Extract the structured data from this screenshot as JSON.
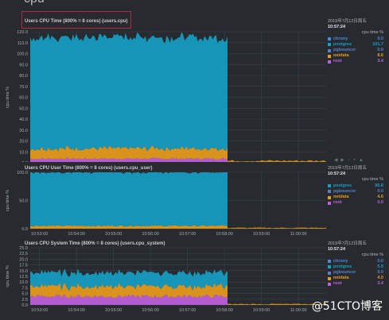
{
  "section_title": "cpu",
  "watermark": "@51CTO博客",
  "controls": "◀ ▶ − + ▲",
  "colors": {
    "chrony": "#4a89dc",
    "postgres": "#169ec4",
    "pgbouncer": "#5b7fc7",
    "netdata": "#e89b1a",
    "root": "#c15fe0",
    "bg": "#272b30",
    "grid": "#3c4148",
    "axis": "#a9adb3"
  },
  "chart_data": [
    {
      "type": "area",
      "title": "Users CPU Time (800% = 8 cores) (users.cpu)",
      "ylabel": "cpu time %",
      "ylim": [
        0,
        120
      ],
      "yticks": [
        "0.0",
        "10.0",
        "20.0",
        "30.0",
        "40.0",
        "50.0",
        "60.0",
        "70.0",
        "80.0",
        "90.0",
        "100.0",
        "110.0",
        "120.0"
      ],
      "xticks": [
        "10:53:00",
        "10:54:00",
        "10:55:00",
        "10:56:00",
        "10:57:00",
        "10:58:00",
        "10:59:00",
        "11:00:00"
      ],
      "x_start": "10:52:45",
      "x_end": "11:00:45",
      "active_until": "10:58:05",
      "series": [
        {
          "name": "chrony",
          "value": "0.0",
          "level": 0
        },
        {
          "name": "postgres",
          "value": "101.7",
          "level": 101.7
        },
        {
          "name": "pgbouncer",
          "value": "0.0",
          "level": 0
        },
        {
          "name": "netdata",
          "value": "8.6",
          "level": 8.6
        },
        {
          "name": "root",
          "value": "3.4",
          "level": 3.4
        }
      ],
      "legend": {
        "date": "2019年7月12日周五",
        "time": "10:57:24",
        "unit": "cpu time %"
      }
    },
    {
      "type": "area",
      "title": "Users CPU User Time (800% = 8 cores) (users.cpu_user)",
      "ylabel": "cpu time %",
      "ylim": [
        0,
        100
      ],
      "yticks": [
        "0.0",
        "50.0",
        "100.0"
      ],
      "xticks": [
        "10:53:00",
        "10:54:00",
        "10:55:00",
        "10:56:00",
        "10:57:00",
        "10:58:00",
        "10:59:00",
        "11:00:00"
      ],
      "x_start": "10:52:45",
      "x_end": "11:00:45",
      "active_until": "10:58:05",
      "series": [
        {
          "name": "postgres",
          "value": "95.8",
          "level": 95.8
        },
        {
          "name": "pgbouncer",
          "value": "0.0",
          "level": 0
        },
        {
          "name": "netdata",
          "value": "4.6",
          "level": 4.6
        },
        {
          "name": "root",
          "value": "0.0",
          "level": 0
        }
      ],
      "legend": {
        "date": "2019年7月12日周五",
        "time": "10:57:24",
        "unit": "cpu time %"
      }
    },
    {
      "type": "area",
      "title": "Users CPU System Time (800% = 8 cores) (users.cpu_system)",
      "ylabel": "cpu time %",
      "ylim": [
        0,
        25
      ],
      "yticks": [
        "0.0",
        "2.5",
        "5.0",
        "7.5",
        "10.0",
        "12.5",
        "15.0",
        "17.5",
        "20.0",
        "22.5",
        "25.0"
      ],
      "xticks": [
        "10:53:00",
        "10:54:00",
        "10:55:00",
        "10:56:00",
        "10:57:00",
        "10:58:00",
        "10:59:00",
        "11:00:00"
      ],
      "x_start": "10:52:45",
      "x_end": "11:00:45",
      "active_until": "10:58:05",
      "series": [
        {
          "name": "chrony",
          "value": "0.0",
          "level": 0
        },
        {
          "name": "postgres",
          "value": "5.9",
          "level": 5.9
        },
        {
          "name": "pgbouncer",
          "value": "0.0",
          "level": 0
        },
        {
          "name": "netdata",
          "value": "4.0",
          "level": 4.0
        },
        {
          "name": "root",
          "value": "3.4",
          "level": 3.4
        }
      ],
      "legend": {
        "date": "2019年7月12日周五",
        "time": "10:57:24",
        "unit": "cpu time %"
      }
    }
  ]
}
